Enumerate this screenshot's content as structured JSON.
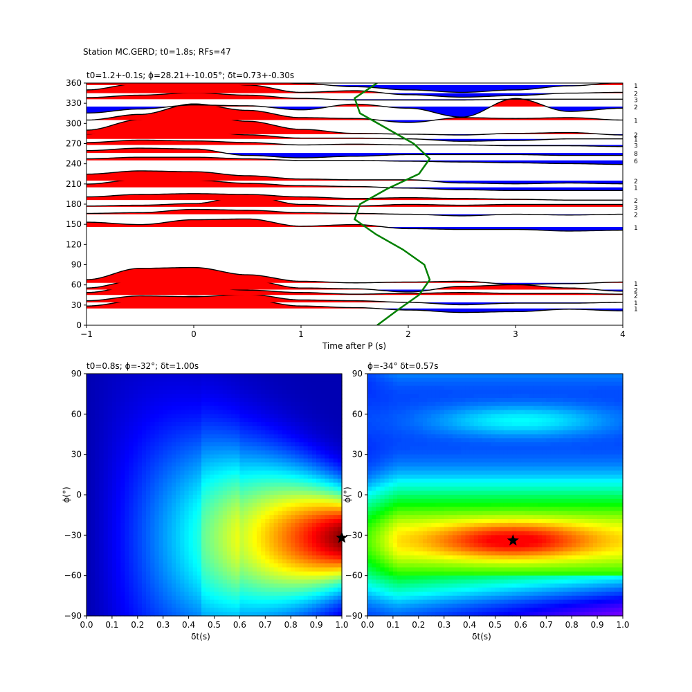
{
  "figure": {
    "suptitle": "Station MC.GERD; t0=1.8s; RFs=47"
  },
  "chart_data": [
    {
      "type": "wiggle",
      "title": "t0=1.2+-0.1s; ϕ=28.21+-10.05°; δt=0.73+-0.30s",
      "xlabel": "Time after P (s)",
      "ylabel": "",
      "xlim": [
        -1,
        4
      ],
      "ylim": [
        0,
        360
      ],
      "xticks": [
        "−1",
        "0",
        "1",
        "2",
        "3",
        "4"
      ],
      "yticks": [
        "0",
        "30",
        "60",
        "90",
        "120",
        "150",
        "180",
        "210",
        "240",
        "270",
        "300",
        "330",
        "360"
      ],
      "positive_fill": "#ff0000",
      "negative_fill": "#0000ff",
      "fit_curve_color": "#008000",
      "traces": [
        {
          "baz": 357,
          "count": "1",
          "x": [
            -1,
            -0.5,
            0,
            0.5,
            1,
            1.5,
            2,
            2.5,
            3,
            3.5,
            4
          ],
          "y": [
            1.6,
            1.9,
            1.7,
            0.8,
            0.2,
            -0.2,
            -0.6,
            -0.9,
            -0.6,
            -0.1,
            0.3
          ]
        },
        {
          "baz": 345,
          "count": "2",
          "x": [
            -1,
            -0.5,
            0,
            0.5,
            1,
            1.5,
            2,
            2.5,
            3,
            3.5,
            4
          ],
          "y": [
            0.4,
            1.2,
            2.2,
            1.0,
            0.1,
            0.3,
            -0.2,
            -0.5,
            -0.3,
            0.0,
            0.1
          ]
        },
        {
          "baz": 336,
          "count": "3",
          "x": [
            -1,
            -0.5,
            0,
            0.5,
            1,
            1.5,
            2,
            2.5,
            3,
            3.5,
            4
          ],
          "y": [
            0.2,
            0.5,
            0.8,
            0.5,
            0.1,
            -0.1,
            -0.1,
            -0.1,
            0.0,
            0.0,
            0.0
          ]
        },
        {
          "baz": 325,
          "count": "2",
          "x": [
            -1,
            -0.5,
            0,
            0.5,
            1,
            1.5,
            2,
            2.5,
            3,
            3.5,
            4
          ],
          "y": [
            -0.8,
            -0.3,
            0.2,
            0.1,
            -0.4,
            0.3,
            -0.2,
            -1.3,
            1.0,
            -0.6,
            -0.2
          ]
        },
        {
          "baz": 305,
          "count": "1",
          "x": [
            -1,
            -0.5,
            0,
            0.5,
            1,
            1.5,
            2,
            2.5,
            3,
            3.5,
            4
          ],
          "y": [
            0.0,
            0.7,
            2.0,
            1.2,
            0.3,
            0.2,
            -0.3,
            0.3,
            0.2,
            0.3,
            0.0
          ]
        },
        {
          "baz": 284,
          "count": "2",
          "x": [
            -1,
            -0.5,
            0,
            0.5,
            1,
            1.5,
            2,
            2.5,
            3,
            3.5,
            4
          ],
          "y": [
            0.5,
            1.8,
            2.6,
            1.6,
            0.6,
            0.1,
            0.0,
            -0.1,
            0.1,
            0.2,
            -0.1
          ]
        },
        {
          "baz": 277,
          "count": "1",
          "x": [
            -1,
            -0.5,
            0,
            0.5,
            1,
            1.5,
            2,
            2.5,
            3,
            3.5,
            4
          ],
          "y": [
            0.6,
            1.6,
            1.1,
            0.5,
            0.1,
            0.1,
            0.0,
            -0.3,
            -0.2,
            0.0,
            0.0
          ]
        },
        {
          "baz": 268,
          "count": "3",
          "x": [
            -1,
            -0.5,
            0,
            0.5,
            1,
            1.5,
            2,
            2.5,
            3,
            3.5,
            4
          ],
          "y": [
            0.3,
            0.6,
            0.5,
            0.3,
            0.0,
            0.1,
            0.0,
            0.0,
            -0.1,
            -0.1,
            -0.2
          ]
        },
        {
          "baz": 256,
          "count": "8",
          "x": [
            -1,
            -0.5,
            0,
            0.5,
            1,
            1.5,
            2,
            2.5,
            3,
            3.5,
            4
          ],
          "y": [
            0.3,
            0.6,
            0.5,
            -0.3,
            -0.6,
            -0.4,
            -0.2,
            -0.2,
            -0.2,
            -0.3,
            -0.3
          ]
        },
        {
          "baz": 245,
          "count": "6",
          "x": [
            -1,
            -0.5,
            0,
            0.5,
            1,
            1.5,
            2,
            2.5,
            3,
            3.5,
            4
          ],
          "y": [
            0.2,
            0.4,
            0.4,
            0.2,
            0.0,
            0.0,
            -0.1,
            -0.2,
            -0.3,
            -0.4,
            -0.5
          ]
        },
        {
          "baz": 215,
          "count": "2",
          "x": [
            -1,
            -0.5,
            0,
            0.5,
            1,
            1.5,
            2,
            2.5,
            3,
            3.5,
            4
          ],
          "y": [
            0.8,
            1.2,
            1.1,
            0.6,
            0.2,
            0.1,
            0.1,
            -0.3,
            -0.4,
            -0.3,
            -0.4
          ]
        },
        {
          "baz": 205,
          "count": "1",
          "x": [
            -1,
            -0.5,
            0,
            0.5,
            1,
            1.5,
            2,
            2.5,
            3,
            3.5,
            4
          ],
          "y": [
            0.4,
            1.0,
            0.9,
            0.5,
            0.2,
            0.1,
            -0.1,
            -0.3,
            -0.4,
            -0.4,
            -0.4
          ]
        },
        {
          "baz": 186,
          "count": "2",
          "x": [
            -1,
            -0.5,
            0,
            0.5,
            1,
            1.5,
            2,
            2.5,
            3,
            3.5,
            4
          ],
          "y": [
            0.4,
            0.7,
            0.8,
            0.7,
            0.4,
            0.2,
            0.3,
            0.2,
            0.1,
            0.0,
            0.0
          ]
        },
        {
          "baz": 176,
          "count": "3",
          "x": [
            -1,
            -0.5,
            0,
            0.5,
            1,
            1.5,
            2,
            2.5,
            3,
            3.5,
            4
          ],
          "y": [
            0.1,
            0.2,
            0.4,
            1.4,
            0.3,
            0.1,
            0.3,
            0.2,
            0.3,
            0.3,
            0.3
          ]
        },
        {
          "baz": 165,
          "count": "2",
          "x": [
            -1,
            -0.5,
            0,
            0.5,
            1,
            1.5,
            2,
            2.5,
            3,
            3.5,
            4
          ],
          "y": [
            0.1,
            0.2,
            0.6,
            0.5,
            0.2,
            0.1,
            0.0,
            -0.2,
            0.0,
            -0.1,
            0.0
          ]
        },
        {
          "baz": 146,
          "count": "1",
          "x": [
            -1,
            -0.5,
            0,
            0.5,
            1,
            1.5,
            2,
            2.5,
            3,
            3.5,
            4
          ],
          "y": [
            0.6,
            0.3,
            0.9,
            1.0,
            0.1,
            0.3,
            -0.2,
            -0.3,
            -0.3,
            -0.5,
            -0.4
          ]
        },
        {
          "baz": 63,
          "count": "1",
          "x": [
            -1,
            -0.5,
            0,
            0.5,
            1,
            1.5,
            2,
            2.5,
            3,
            3.5,
            4
          ],
          "y": [
            0.4,
            1.8,
            1.9,
            1.0,
            0.2,
            0.0,
            0.1,
            0.2,
            -0.2,
            -0.1,
            0.1
          ]
        },
        {
          "baz": 53,
          "count": "2",
          "x": [
            -1,
            -0.5,
            0,
            0.5,
            1,
            1.5,
            2,
            2.5,
            3,
            3.5,
            4
          ],
          "y": [
            0.2,
            1.2,
            1.9,
            1.2,
            0.2,
            0.1,
            -0.3,
            0.4,
            0.6,
            0.2,
            -0.2
          ]
        },
        {
          "baz": 45,
          "count": "2",
          "x": [
            -1,
            -0.5,
            0,
            0.5,
            1,
            1.5,
            2,
            2.5,
            3,
            3.5,
            4
          ],
          "y": [
            0.3,
            1.2,
            1.1,
            0.6,
            0.3,
            0.1,
            0.2,
            0.3,
            0.2,
            0.2,
            0.1
          ]
        },
        {
          "baz": 34,
          "count": "1",
          "x": [
            -1,
            -0.5,
            0,
            0.5,
            1,
            1.5,
            2,
            2.5,
            3,
            3.5,
            4
          ],
          "y": [
            0.2,
            0.8,
            0.7,
            1.0,
            0.3,
            0.2,
            0.0,
            -0.3,
            -0.1,
            -0.1,
            0.0
          ]
        },
        {
          "baz": 25,
          "count": "1",
          "x": [
            -1,
            -0.5,
            0,
            0.5,
            1,
            1.5,
            2,
            2.5,
            3,
            3.5,
            4
          ],
          "y": [
            0.3,
            1.0,
            1.5,
            1.1,
            0.3,
            0.1,
            -0.2,
            -0.5,
            -0.4,
            -0.1,
            -0.3
          ]
        }
      ],
      "fit_curve": {
        "x": [
          1.71,
          1.9,
          2.1,
          2.2,
          2.15,
          1.95,
          1.7,
          1.5,
          1.55,
          1.8,
          2.1,
          2.2,
          2.05,
          1.8,
          1.55,
          1.5,
          1.71
        ],
        "y": [
          0,
          22.5,
          45,
          67.5,
          90,
          112.5,
          135,
          157.5,
          180,
          202.5,
          225,
          247.5,
          270,
          292.5,
          315,
          337.5,
          360
        ]
      }
    },
    {
      "type": "heatmap",
      "title": "t0=0.8s; ϕ=-32°; δt=1.00s",
      "xlabel": "δt(s)",
      "ylabel": "ϕ(°)",
      "xlim": [
        0,
        1
      ],
      "ylim": [
        -90,
        90
      ],
      "xticks": [
        "0.0",
        "0.1",
        "0.2",
        "0.3",
        "0.4",
        "0.5",
        "0.6",
        "0.7",
        "0.8",
        "0.9",
        "1.0"
      ],
      "yticks": [
        "−90",
        "−60",
        "−30",
        "0",
        "30",
        "60",
        "90"
      ],
      "colormap": "jet",
      "best": {
        "dt": 1.0,
        "phi": -32
      }
    },
    {
      "type": "heatmap",
      "title": "ϕ=-34° δt=0.57s",
      "xlabel": "δt(s)",
      "ylabel": "ϕ(°)",
      "xlim": [
        0,
        1
      ],
      "ylim": [
        -90,
        90
      ],
      "xticks": [
        "0.0",
        "0.1",
        "0.2",
        "0.3",
        "0.4",
        "0.5",
        "0.6",
        "0.7",
        "0.8",
        "0.9",
        "1.0"
      ],
      "yticks": [
        "−90",
        "−60",
        "−30",
        "0",
        "30",
        "60",
        "90"
      ],
      "colormap": "gist_rainbow",
      "best": {
        "dt": 0.57,
        "phi": -34
      }
    }
  ]
}
